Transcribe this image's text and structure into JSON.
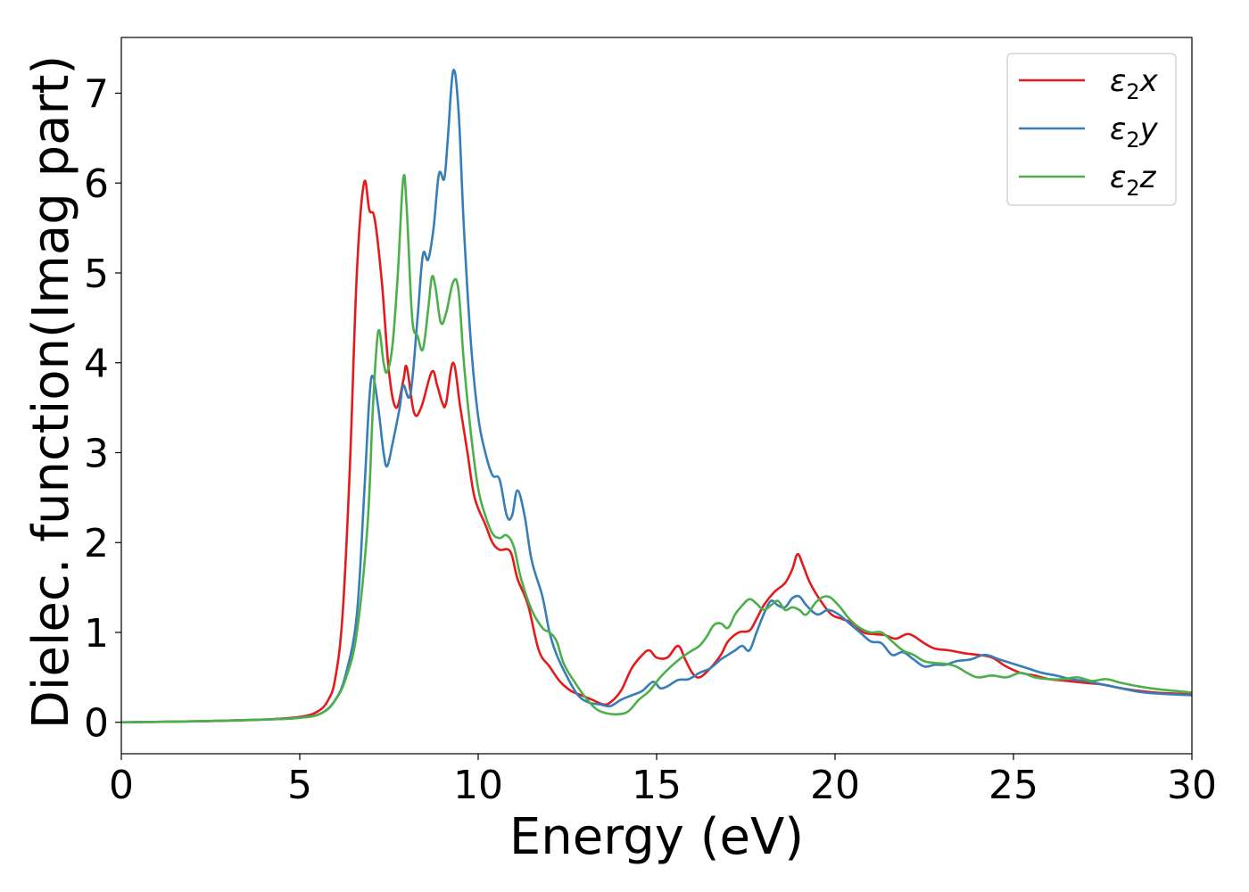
{
  "chart_data": {
    "type": "line",
    "title": "",
    "xlabel": "Energy (eV)",
    "ylabel": "Dielec. function(Imag part)",
    "xlim": [
      0,
      30
    ],
    "ylim": [
      -0.35,
      7.62
    ],
    "xticks": [
      0,
      5,
      10,
      15,
      20,
      25,
      30
    ],
    "yticks": [
      0,
      1,
      2,
      3,
      4,
      5,
      6,
      7
    ],
    "grid": false,
    "legend_position": "top-right",
    "series": [
      {
        "name": "ε2x",
        "legend_base": "ε",
        "legend_sub": "2",
        "legend_suffix": "x",
        "color": "#e41a1c",
        "points": [
          [
            0,
            0
          ],
          [
            2,
            0.01
          ],
          [
            4,
            0.03
          ],
          [
            5,
            0.06
          ],
          [
            5.5,
            0.12
          ],
          [
            5.8,
            0.25
          ],
          [
            6.0,
            0.5
          ],
          [
            6.2,
            1.2
          ],
          [
            6.4,
            2.8
          ],
          [
            6.6,
            5.0
          ],
          [
            6.8,
            6.0
          ],
          [
            6.95,
            5.7
          ],
          [
            7.1,
            5.6
          ],
          [
            7.3,
            4.9
          ],
          [
            7.5,
            3.9
          ],
          [
            7.7,
            3.5
          ],
          [
            7.9,
            3.8
          ],
          [
            8.0,
            3.95
          ],
          [
            8.2,
            3.45
          ],
          [
            8.4,
            3.5
          ],
          [
            8.7,
            3.9
          ],
          [
            8.85,
            3.75
          ],
          [
            9.0,
            3.55
          ],
          [
            9.1,
            3.55
          ],
          [
            9.3,
            4.0
          ],
          [
            9.5,
            3.5
          ],
          [
            9.7,
            3.0
          ],
          [
            9.9,
            2.5
          ],
          [
            10.2,
            2.2
          ],
          [
            10.4,
            2.0
          ],
          [
            10.6,
            1.92
          ],
          [
            10.9,
            1.9
          ],
          [
            11.1,
            1.6
          ],
          [
            11.4,
            1.3
          ],
          [
            11.7,
            0.8
          ],
          [
            12.0,
            0.62
          ],
          [
            12.3,
            0.45
          ],
          [
            12.6,
            0.35
          ],
          [
            12.9,
            0.3
          ],
          [
            13.2,
            0.25
          ],
          [
            13.5,
            0.2
          ],
          [
            13.7,
            0.22
          ],
          [
            14.0,
            0.35
          ],
          [
            14.3,
            0.6
          ],
          [
            14.6,
            0.75
          ],
          [
            14.8,
            0.8
          ],
          [
            15.0,
            0.72
          ],
          [
            15.3,
            0.72
          ],
          [
            15.6,
            0.85
          ],
          [
            15.8,
            0.7
          ],
          [
            16.0,
            0.55
          ],
          [
            16.2,
            0.5
          ],
          [
            16.5,
            0.6
          ],
          [
            16.8,
            0.75
          ],
          [
            17.0,
            0.9
          ],
          [
            17.3,
            1.0
          ],
          [
            17.6,
            1.02
          ],
          [
            17.8,
            1.15
          ],
          [
            18.0,
            1.3
          ],
          [
            18.3,
            1.45
          ],
          [
            18.6,
            1.55
          ],
          [
            18.8,
            1.7
          ],
          [
            18.95,
            1.87
          ],
          [
            19.1,
            1.75
          ],
          [
            19.3,
            1.55
          ],
          [
            19.6,
            1.35
          ],
          [
            19.9,
            1.2
          ],
          [
            20.2,
            1.15
          ],
          [
            20.5,
            1.1
          ],
          [
            20.8,
            1.0
          ],
          [
            21.1,
            0.98
          ],
          [
            21.4,
            0.97
          ],
          [
            21.7,
            0.93
          ],
          [
            22.0,
            0.98
          ],
          [
            22.2,
            0.96
          ],
          [
            22.5,
            0.88
          ],
          [
            22.8,
            0.82
          ],
          [
            23.2,
            0.8
          ],
          [
            23.6,
            0.77
          ],
          [
            24.0,
            0.75
          ],
          [
            24.4,
            0.72
          ],
          [
            24.8,
            0.62
          ],
          [
            25.2,
            0.55
          ],
          [
            25.6,
            0.52
          ],
          [
            26.0,
            0.48
          ],
          [
            26.5,
            0.46
          ],
          [
            27.0,
            0.44
          ],
          [
            27.5,
            0.42
          ],
          [
            28.0,
            0.38
          ],
          [
            28.5,
            0.35
          ],
          [
            29.0,
            0.33
          ],
          [
            29.5,
            0.32
          ],
          [
            30.0,
            0.31
          ]
        ]
      },
      {
        "name": "ε2y",
        "legend_base": "ε",
        "legend_sub": "2",
        "legend_suffix": "y",
        "color": "#377eb8",
        "points": [
          [
            0,
            0
          ],
          [
            2,
            0.01
          ],
          [
            4,
            0.03
          ],
          [
            5,
            0.05
          ],
          [
            5.6,
            0.1
          ],
          [
            6.0,
            0.25
          ],
          [
            6.3,
            0.55
          ],
          [
            6.6,
            1.2
          ],
          [
            6.8,
            2.5
          ],
          [
            6.95,
            3.6
          ],
          [
            7.05,
            3.85
          ],
          [
            7.2,
            3.5
          ],
          [
            7.35,
            3.0
          ],
          [
            7.45,
            2.85
          ],
          [
            7.6,
            3.1
          ],
          [
            7.8,
            3.5
          ],
          [
            7.9,
            3.75
          ],
          [
            8.1,
            3.65
          ],
          [
            8.3,
            4.5
          ],
          [
            8.45,
            5.2
          ],
          [
            8.6,
            5.15
          ],
          [
            8.75,
            5.5
          ],
          [
            8.9,
            6.1
          ],
          [
            9.05,
            6.05
          ],
          [
            9.15,
            6.5
          ],
          [
            9.3,
            7.25
          ],
          [
            9.45,
            6.8
          ],
          [
            9.6,
            5.5
          ],
          [
            9.8,
            4.2
          ],
          [
            10.0,
            3.4
          ],
          [
            10.2,
            3.0
          ],
          [
            10.4,
            2.75
          ],
          [
            10.6,
            2.7
          ],
          [
            10.8,
            2.3
          ],
          [
            10.95,
            2.3
          ],
          [
            11.1,
            2.58
          ],
          [
            11.3,
            2.3
          ],
          [
            11.5,
            1.8
          ],
          [
            11.8,
            1.4
          ],
          [
            12.0,
            1.0
          ],
          [
            12.2,
            0.75
          ],
          [
            12.5,
            0.5
          ],
          [
            12.8,
            0.3
          ],
          [
            13.1,
            0.22
          ],
          [
            13.4,
            0.2
          ],
          [
            13.7,
            0.18
          ],
          [
            14.0,
            0.25
          ],
          [
            14.3,
            0.3
          ],
          [
            14.6,
            0.35
          ],
          [
            14.9,
            0.45
          ],
          [
            15.1,
            0.38
          ],
          [
            15.3,
            0.4
          ],
          [
            15.6,
            0.47
          ],
          [
            15.9,
            0.48
          ],
          [
            16.2,
            0.55
          ],
          [
            16.5,
            0.6
          ],
          [
            16.8,
            0.7
          ],
          [
            17.0,
            0.75
          ],
          [
            17.2,
            0.8
          ],
          [
            17.4,
            0.85
          ],
          [
            17.6,
            0.8
          ],
          [
            17.8,
            1.0
          ],
          [
            18.0,
            1.2
          ],
          [
            18.2,
            1.35
          ],
          [
            18.4,
            1.3
          ],
          [
            18.6,
            1.28
          ],
          [
            18.8,
            1.38
          ],
          [
            19.0,
            1.4
          ],
          [
            19.2,
            1.3
          ],
          [
            19.5,
            1.2
          ],
          [
            19.8,
            1.25
          ],
          [
            20.1,
            1.2
          ],
          [
            20.4,
            1.1
          ],
          [
            20.7,
            1.0
          ],
          [
            21.0,
            0.9
          ],
          [
            21.3,
            0.88
          ],
          [
            21.6,
            0.75
          ],
          [
            21.9,
            0.78
          ],
          [
            22.2,
            0.7
          ],
          [
            22.5,
            0.62
          ],
          [
            22.8,
            0.64
          ],
          [
            23.1,
            0.64
          ],
          [
            23.4,
            0.68
          ],
          [
            23.8,
            0.7
          ],
          [
            24.2,
            0.75
          ],
          [
            24.6,
            0.7
          ],
          [
            25.0,
            0.65
          ],
          [
            25.4,
            0.6
          ],
          [
            25.8,
            0.55
          ],
          [
            26.2,
            0.52
          ],
          [
            26.6,
            0.48
          ],
          [
            27.0,
            0.46
          ],
          [
            27.5,
            0.42
          ],
          [
            28.0,
            0.38
          ],
          [
            28.5,
            0.34
          ],
          [
            29.0,
            0.32
          ],
          [
            29.5,
            0.31
          ],
          [
            30.0,
            0.3
          ]
        ]
      },
      {
        "name": "ε2z",
        "legend_base": "ε",
        "legend_sub": "2",
        "legend_suffix": "z",
        "color": "#4daf4a",
        "points": [
          [
            0,
            0
          ],
          [
            2,
            0.01
          ],
          [
            4,
            0.03
          ],
          [
            5,
            0.05
          ],
          [
            5.6,
            0.1
          ],
          [
            6.0,
            0.25
          ],
          [
            6.3,
            0.5
          ],
          [
            6.6,
            1.0
          ],
          [
            6.9,
            2.2
          ],
          [
            7.05,
            3.5
          ],
          [
            7.2,
            4.35
          ],
          [
            7.35,
            4.0
          ],
          [
            7.45,
            3.9
          ],
          [
            7.6,
            4.2
          ],
          [
            7.75,
            5.0
          ],
          [
            7.9,
            6.05
          ],
          [
            8.0,
            5.7
          ],
          [
            8.15,
            4.5
          ],
          [
            8.3,
            4.3
          ],
          [
            8.45,
            4.15
          ],
          [
            8.6,
            4.6
          ],
          [
            8.7,
            4.95
          ],
          [
            8.8,
            4.85
          ],
          [
            8.95,
            4.45
          ],
          [
            9.1,
            4.55
          ],
          [
            9.3,
            4.9
          ],
          [
            9.45,
            4.8
          ],
          [
            9.6,
            4.0
          ],
          [
            9.8,
            3.2
          ],
          [
            10.0,
            2.6
          ],
          [
            10.2,
            2.3
          ],
          [
            10.4,
            2.1
          ],
          [
            10.6,
            2.05
          ],
          [
            10.8,
            2.08
          ],
          [
            11.0,
            1.95
          ],
          [
            11.2,
            1.6
          ],
          [
            11.5,
            1.25
          ],
          [
            11.8,
            1.05
          ],
          [
            12.0,
            1.0
          ],
          [
            12.2,
            0.9
          ],
          [
            12.4,
            0.65
          ],
          [
            12.7,
            0.45
          ],
          [
            13.0,
            0.28
          ],
          [
            13.3,
            0.15
          ],
          [
            13.6,
            0.1
          ],
          [
            13.9,
            0.09
          ],
          [
            14.2,
            0.12
          ],
          [
            14.5,
            0.25
          ],
          [
            14.8,
            0.35
          ],
          [
            15.1,
            0.5
          ],
          [
            15.4,
            0.62
          ],
          [
            15.7,
            0.72
          ],
          [
            16.0,
            0.8
          ],
          [
            16.2,
            0.85
          ],
          [
            16.4,
            0.95
          ],
          [
            16.6,
            1.08
          ],
          [
            16.8,
            1.1
          ],
          [
            17.0,
            1.05
          ],
          [
            17.2,
            1.2
          ],
          [
            17.4,
            1.3
          ],
          [
            17.6,
            1.37
          ],
          [
            17.8,
            1.32
          ],
          [
            18.0,
            1.25
          ],
          [
            18.2,
            1.3
          ],
          [
            18.4,
            1.35
          ],
          [
            18.6,
            1.25
          ],
          [
            18.8,
            1.28
          ],
          [
            19.0,
            1.25
          ],
          [
            19.2,
            1.2
          ],
          [
            19.5,
            1.35
          ],
          [
            19.8,
            1.4
          ],
          [
            20.1,
            1.3
          ],
          [
            20.4,
            1.15
          ],
          [
            20.7,
            1.05
          ],
          [
            21.0,
            1.0
          ],
          [
            21.3,
            1.0
          ],
          [
            21.6,
            0.9
          ],
          [
            21.9,
            0.8
          ],
          [
            22.2,
            0.75
          ],
          [
            22.5,
            0.68
          ],
          [
            22.8,
            0.66
          ],
          [
            23.1,
            0.65
          ],
          [
            23.4,
            0.62
          ],
          [
            23.7,
            0.55
          ],
          [
            24.0,
            0.5
          ],
          [
            24.4,
            0.52
          ],
          [
            24.8,
            0.5
          ],
          [
            25.2,
            0.55
          ],
          [
            25.6,
            0.5
          ],
          [
            26.0,
            0.48
          ],
          [
            26.4,
            0.48
          ],
          [
            26.8,
            0.5
          ],
          [
            27.2,
            0.46
          ],
          [
            27.6,
            0.48
          ],
          [
            28.0,
            0.44
          ],
          [
            28.5,
            0.4
          ],
          [
            29.0,
            0.37
          ],
          [
            29.5,
            0.35
          ],
          [
            30.0,
            0.33
          ]
        ]
      }
    ]
  }
}
